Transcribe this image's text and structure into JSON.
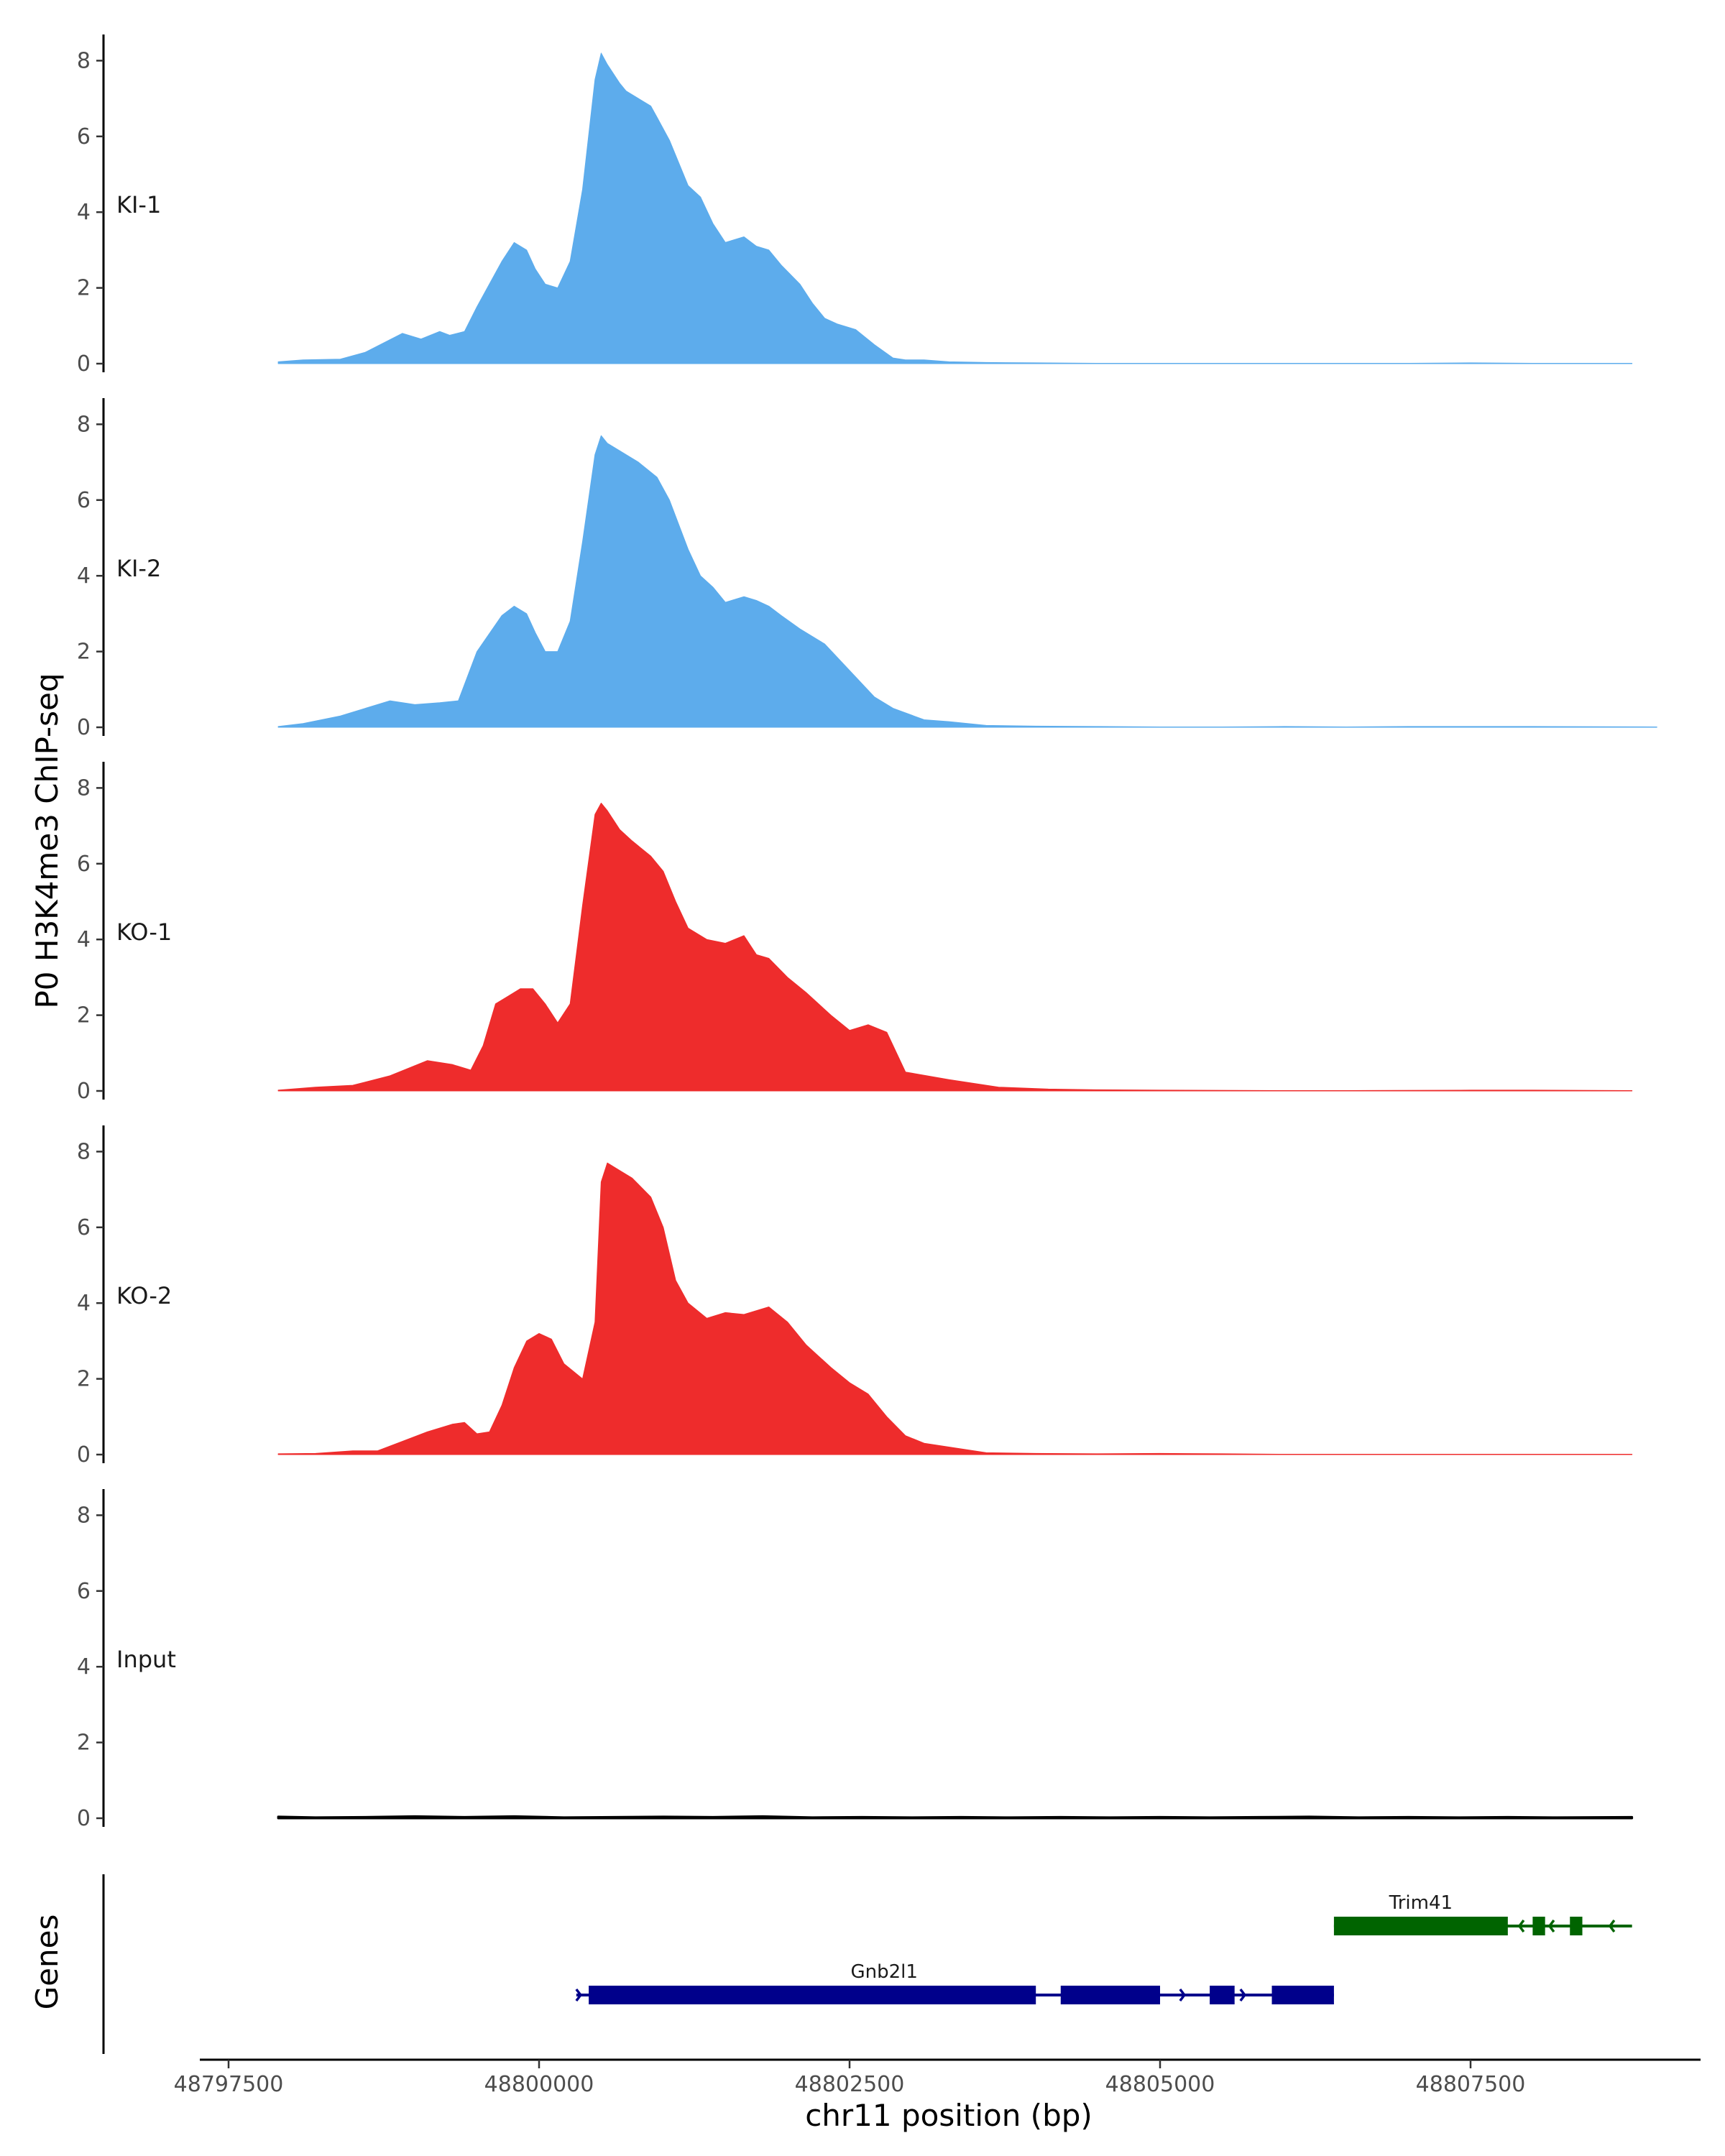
{
  "chart_data": {
    "type": "area",
    "ylabel": "P0 H3K4me3 ChIP-seq",
    "genes_label": "Genes",
    "xlabel": "chr11 position (bp)",
    "xlim": [
      48797000,
      48809500
    ],
    "ylim": [
      0,
      8.7
    ],
    "y_ticks": [
      0,
      2,
      4,
      6,
      8
    ],
    "x_ticks": [
      48797500,
      48800000,
      48802500,
      48805000,
      48807500
    ],
    "grid": false,
    "series": [
      {
        "name": "KI-1",
        "color": "#5DACEC",
        "x": [
          48797900,
          48798100,
          48798400,
          48798600,
          48798900,
          48799050,
          48799200,
          48799280,
          48799400,
          48799500,
          48799700,
          48799800,
          48799900,
          48799970,
          48800050,
          48800150,
          48800250,
          48800350,
          48800450,
          48800500,
          48800550,
          48800650,
          48800700,
          48800800,
          48800900,
          48800950,
          48801050,
          48801200,
          48801300,
          48801400,
          48801500,
          48801650,
          48801750,
          48801850,
          48801950,
          48802100,
          48802200,
          48802300,
          48802400,
          48802550,
          48802700,
          48802850,
          48802950,
          48803100,
          48803300,
          48803600,
          48804000,
          48804500,
          48805000,
          48805500,
          48806000,
          48806500,
          48807000,
          48807500,
          48808000,
          48808800
        ],
        "y": [
          0.05,
          0.1,
          0.12,
          0.3,
          0.8,
          0.65,
          0.85,
          0.75,
          0.85,
          1.5,
          2.7,
          3.2,
          3.0,
          2.5,
          2.1,
          2.0,
          2.7,
          4.6,
          7.5,
          8.2,
          7.9,
          7.4,
          7.2,
          7.0,
          6.8,
          6.5,
          5.9,
          4.7,
          4.4,
          3.7,
          3.2,
          3.35,
          3.1,
          3.0,
          2.6,
          2.1,
          1.6,
          1.2,
          1.05,
          0.9,
          0.5,
          0.15,
          0.1,
          0.1,
          0.05,
          0.03,
          0.02,
          0.01,
          0.01,
          0.01,
          0.01,
          0.01,
          0.01,
          0.02,
          0.01,
          0.01
        ]
      },
      {
        "name": "KI-2",
        "color": "#5DACEC",
        "x": [
          48797900,
          48798100,
          48798400,
          48798800,
          48799000,
          48799200,
          48799350,
          48799500,
          48799700,
          48799800,
          48799900,
          48799970,
          48800050,
          48800150,
          48800250,
          48800350,
          48800450,
          48800500,
          48800550,
          48800650,
          48800800,
          48800950,
          48801050,
          48801200,
          48801300,
          48801400,
          48801500,
          48801650,
          48801750,
          48801850,
          48801950,
          48802100,
          48802300,
          48802500,
          48802700,
          48802850,
          48803100,
          48803300,
          48803600,
          48804000,
          48804500,
          48805000,
          48805500,
          48806000,
          48806500,
          48807000,
          48807500,
          48808000,
          48809000
        ],
        "y": [
          0.02,
          0.1,
          0.3,
          0.7,
          0.6,
          0.65,
          0.7,
          2.0,
          2.95,
          3.2,
          3.0,
          2.5,
          2.0,
          2.0,
          2.8,
          4.9,
          7.2,
          7.7,
          7.5,
          7.3,
          7.0,
          6.6,
          6.0,
          4.7,
          4.0,
          3.7,
          3.3,
          3.45,
          3.35,
          3.2,
          2.95,
          2.6,
          2.2,
          1.5,
          0.8,
          0.5,
          0.2,
          0.15,
          0.05,
          0.03,
          0.02,
          0.01,
          0.01,
          0.02,
          0.01,
          0.02,
          0.02,
          0.02,
          0.01
        ]
      },
      {
        "name": "KO-1",
        "color": "#EE2C2C",
        "x": [
          48797900,
          48798200,
          48798500,
          48798800,
          48799100,
          48799300,
          48799450,
          48799550,
          48799650,
          48799750,
          48799850,
          48799950,
          48800050,
          48800150,
          48800250,
          48800350,
          48800450,
          48800500,
          48800550,
          48800650,
          48800750,
          48800900,
          48801000,
          48801100,
          48801200,
          48801350,
          48801500,
          48801650,
          48801750,
          48801850,
          48802000,
          48802150,
          48802350,
          48802500,
          48802650,
          48802800,
          48802950,
          48803300,
          48803700,
          48804100,
          48804500,
          48805000,
          48806000,
          48806500,
          48807500,
          48808000,
          48808800
        ],
        "y": [
          0.02,
          0.1,
          0.15,
          0.4,
          0.8,
          0.7,
          0.55,
          1.2,
          2.3,
          2.5,
          2.7,
          2.7,
          2.3,
          1.8,
          2.3,
          4.9,
          7.3,
          7.6,
          7.4,
          6.9,
          6.6,
          6.2,
          5.8,
          5.0,
          4.3,
          4.0,
          3.9,
          4.1,
          3.6,
          3.5,
          3.0,
          2.6,
          2.0,
          1.6,
          1.75,
          1.55,
          0.5,
          0.3,
          0.1,
          0.05,
          0.03,
          0.02,
          0.01,
          0.01,
          0.02,
          0.02,
          0.01
        ]
      },
      {
        "name": "KO-2",
        "color": "#EE2C2C",
        "x": [
          48797900,
          48798200,
          48798500,
          48798700,
          48798900,
          48799100,
          48799300,
          48799400,
          48799500,
          48799600,
          48799700,
          48799800,
          48799900,
          48800000,
          48800100,
          48800200,
          48800350,
          48800450,
          48800500,
          48800550,
          48800650,
          48800750,
          48800900,
          48801000,
          48801100,
          48801200,
          48801350,
          48801500,
          48801650,
          48801750,
          48801850,
          48802000,
          48802150,
          48802350,
          48802500,
          48802650,
          48802800,
          48802950,
          48803100,
          48803300,
          48803600,
          48804000,
          48804500,
          48805000,
          48805500,
          48806000,
          48807000,
          48808000,
          48808800
        ],
        "y": [
          0.02,
          0.03,
          0.1,
          0.1,
          0.35,
          0.6,
          0.8,
          0.85,
          0.55,
          0.6,
          1.3,
          2.3,
          3.0,
          3.2,
          3.05,
          2.4,
          2.0,
          3.5,
          7.2,
          7.7,
          7.5,
          7.3,
          6.8,
          6.0,
          4.6,
          4.0,
          3.6,
          3.75,
          3.7,
          3.8,
          3.9,
          3.5,
          2.9,
          2.3,
          1.9,
          1.6,
          1.0,
          0.5,
          0.3,
          0.2,
          0.05,
          0.03,
          0.02,
          0.03,
          0.02,
          0.01,
          0.01,
          0.01,
          0.01
        ]
      },
      {
        "name": "Input",
        "color": "#000000",
        "x": [
          48797900,
          48798200,
          48798600,
          48799000,
          48799400,
          48799800,
          48800200,
          48800600,
          48801000,
          48801400,
          48801800,
          48802200,
          48802600,
          48803000,
          48803400,
          48803800,
          48804200,
          48804600,
          48805000,
          48805400,
          48805800,
          48806200,
          48806600,
          48807000,
          48807400,
          48807800,
          48808200,
          48808800
        ],
        "y": [
          0.04,
          0.02,
          0.03,
          0.05,
          0.03,
          0.05,
          0.02,
          0.03,
          0.04,
          0.03,
          0.05,
          0.02,
          0.03,
          0.02,
          0.03,
          0.02,
          0.03,
          0.02,
          0.03,
          0.02,
          0.03,
          0.04,
          0.02,
          0.03,
          0.02,
          0.03,
          0.02,
          0.03
        ]
      }
    ],
    "genes": [
      {
        "name": "Gnb2l1",
        "color": "#00008B",
        "strand": "+",
        "row": 2,
        "start": 48800300,
        "end": 48806400,
        "exons": [
          [
            48800400,
            48804000
          ],
          [
            48804200,
            48805000
          ],
          [
            48805400,
            48805600
          ],
          [
            48805900,
            48806400
          ]
        ]
      },
      {
        "name": "Trim41",
        "color": "#006400",
        "strand": "-",
        "row": 1,
        "start": 48806400,
        "end": 48808800,
        "exons": [
          [
            48806400,
            48807800
          ],
          [
            48808000,
            48808100
          ],
          [
            48808300,
            48808400
          ]
        ]
      }
    ]
  }
}
